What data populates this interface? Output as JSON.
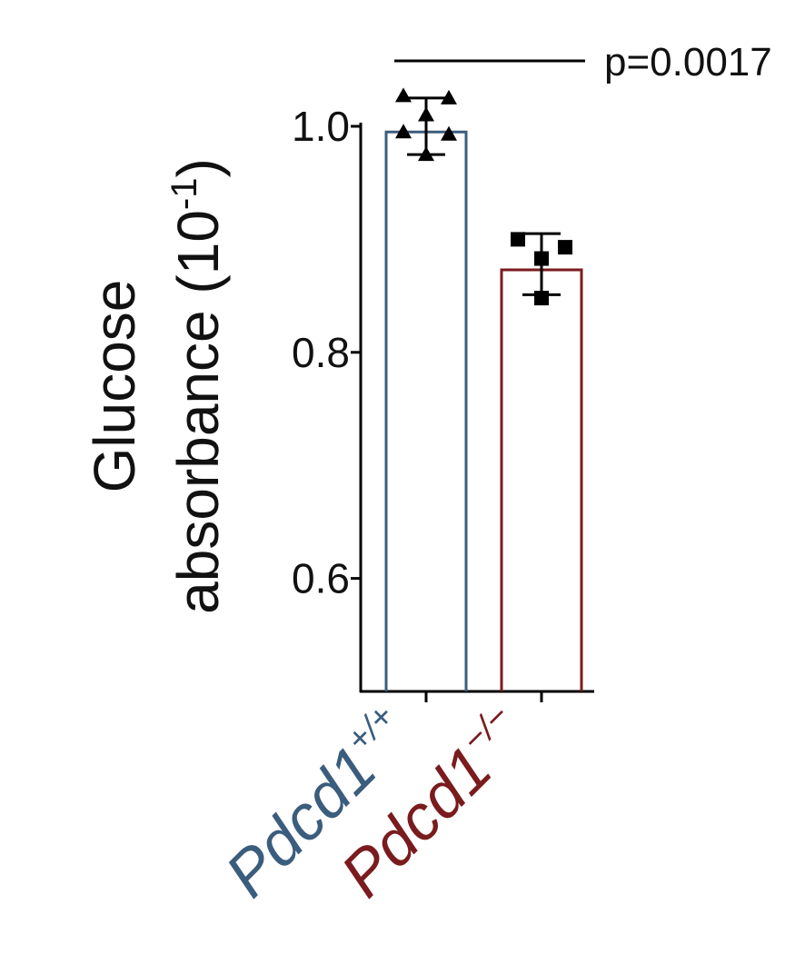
{
  "chart_data": {
    "type": "bar",
    "categories": [
      {
        "base": "Pdcd1",
        "sup": "+/+"
      },
      {
        "base": "Pdcd1",
        "sup": "−/−"
      }
    ],
    "values": [
      0.995,
      0.873
    ],
    "error_bars": [
      {
        "lower": 0.975,
        "upper": 1.025
      },
      {
        "lower": 0.851,
        "upper": 0.905
      }
    ],
    "points": [
      {
        "marker": "triangle",
        "values": [
          1.027,
          1.025,
          1.01,
          0.995,
          0.993,
          0.975
        ]
      },
      {
        "marker": "square",
        "values": [
          0.9,
          0.893,
          0.883,
          0.848
        ]
      }
    ],
    "colors": [
      "#3b5d7d",
      "#7a1b1e"
    ],
    "ylabel": {
      "line1": "Glucose",
      "line2_main": "absorbance (10",
      "line2_sup": "-1",
      "line2_end": ")"
    },
    "yticks": [
      "0.6",
      "0.8",
      "1.0"
    ],
    "ylim": [
      0.5,
      1.0
    ],
    "significance": {
      "label": "p=0.0017",
      "between": [
        0,
        1
      ]
    },
    "grid": false
  }
}
